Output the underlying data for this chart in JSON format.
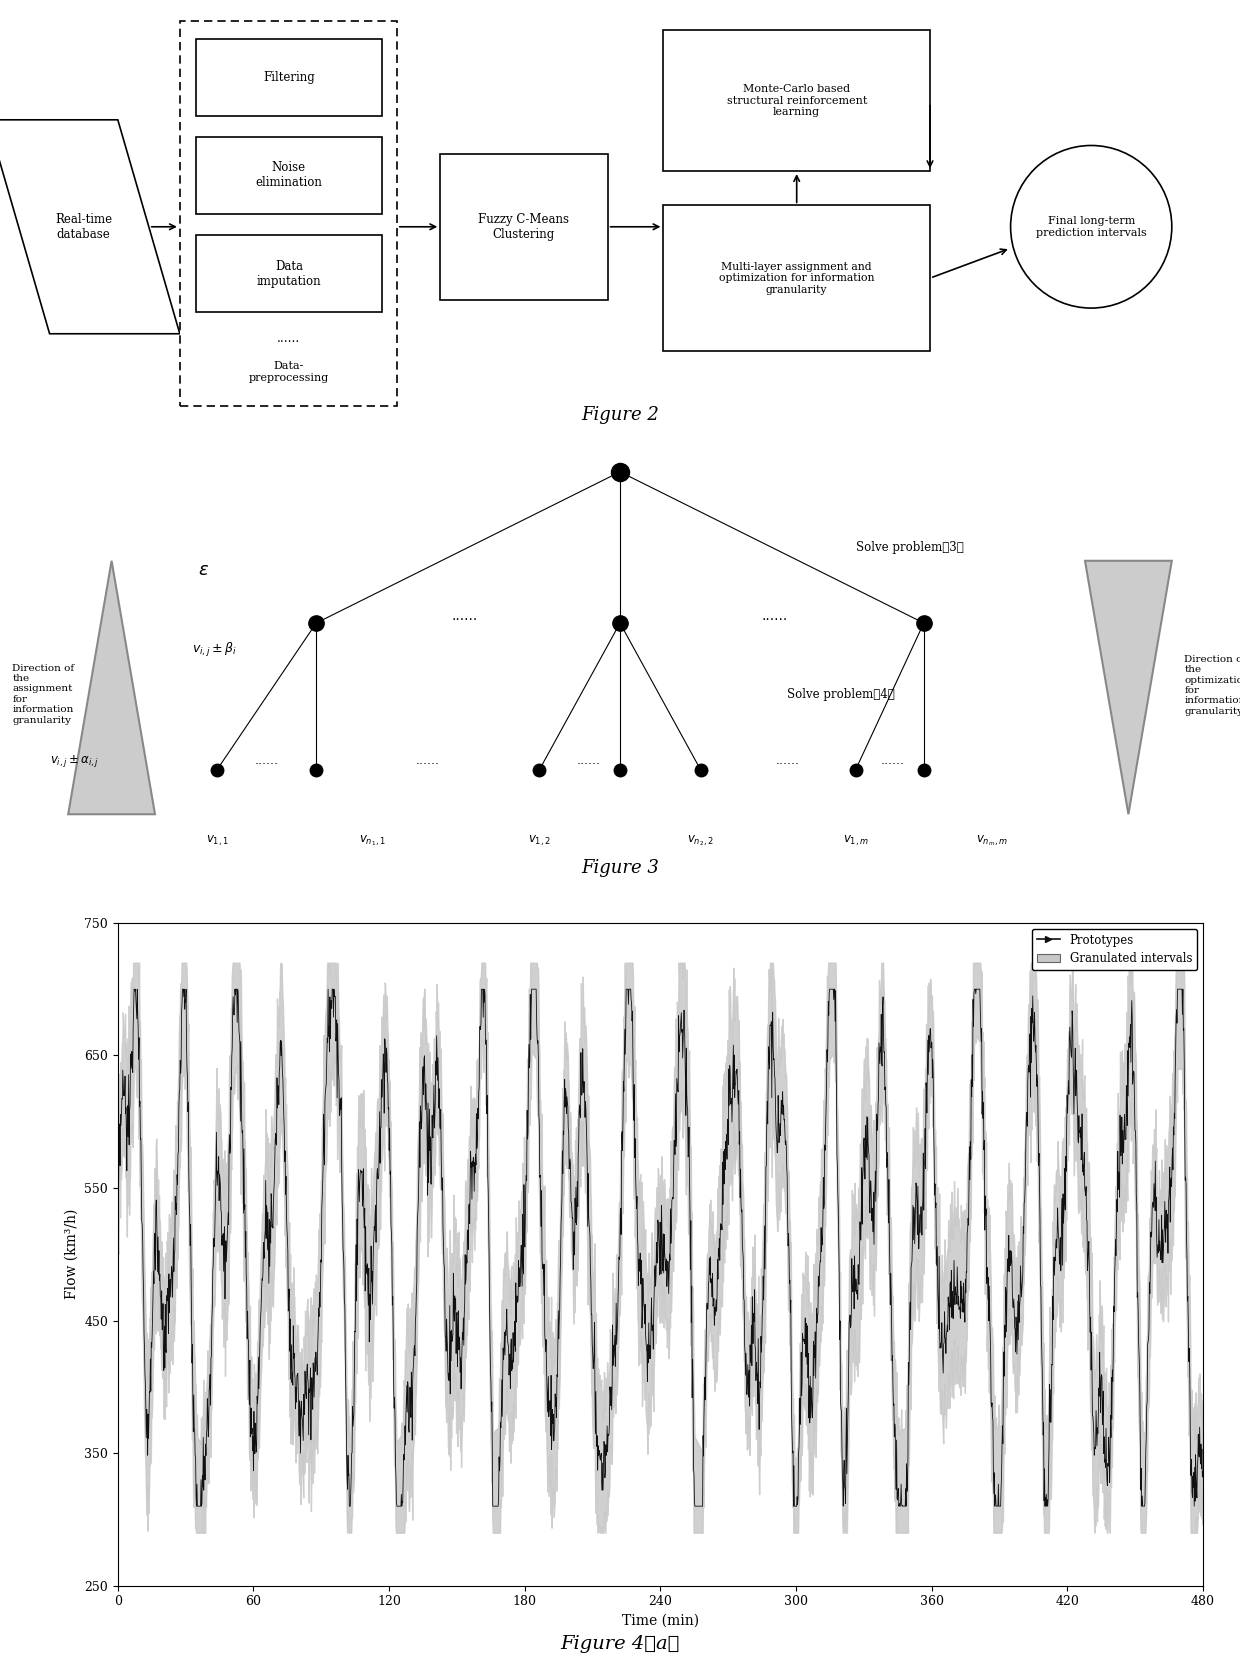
{
  "fig2_title": "Figure 2",
  "fig3_title": "Figure 3",
  "fig4_title": "Figure 4（a）",
  "fig4_xlabel": "Time (min)",
  "fig4_ylabel": "Flow (km³/h)",
  "fig4_xlim": [
    0,
    480
  ],
  "fig4_ylim": [
    250,
    750
  ],
  "fig4_xticks": [
    0,
    60,
    120,
    180,
    240,
    300,
    360,
    420,
    480
  ],
  "fig4_yticks": [
    250,
    350,
    450,
    550,
    650,
    750
  ],
  "fig4_legend_proto": "Prototypes",
  "fig4_legend_gran": "Granulated intervals"
}
